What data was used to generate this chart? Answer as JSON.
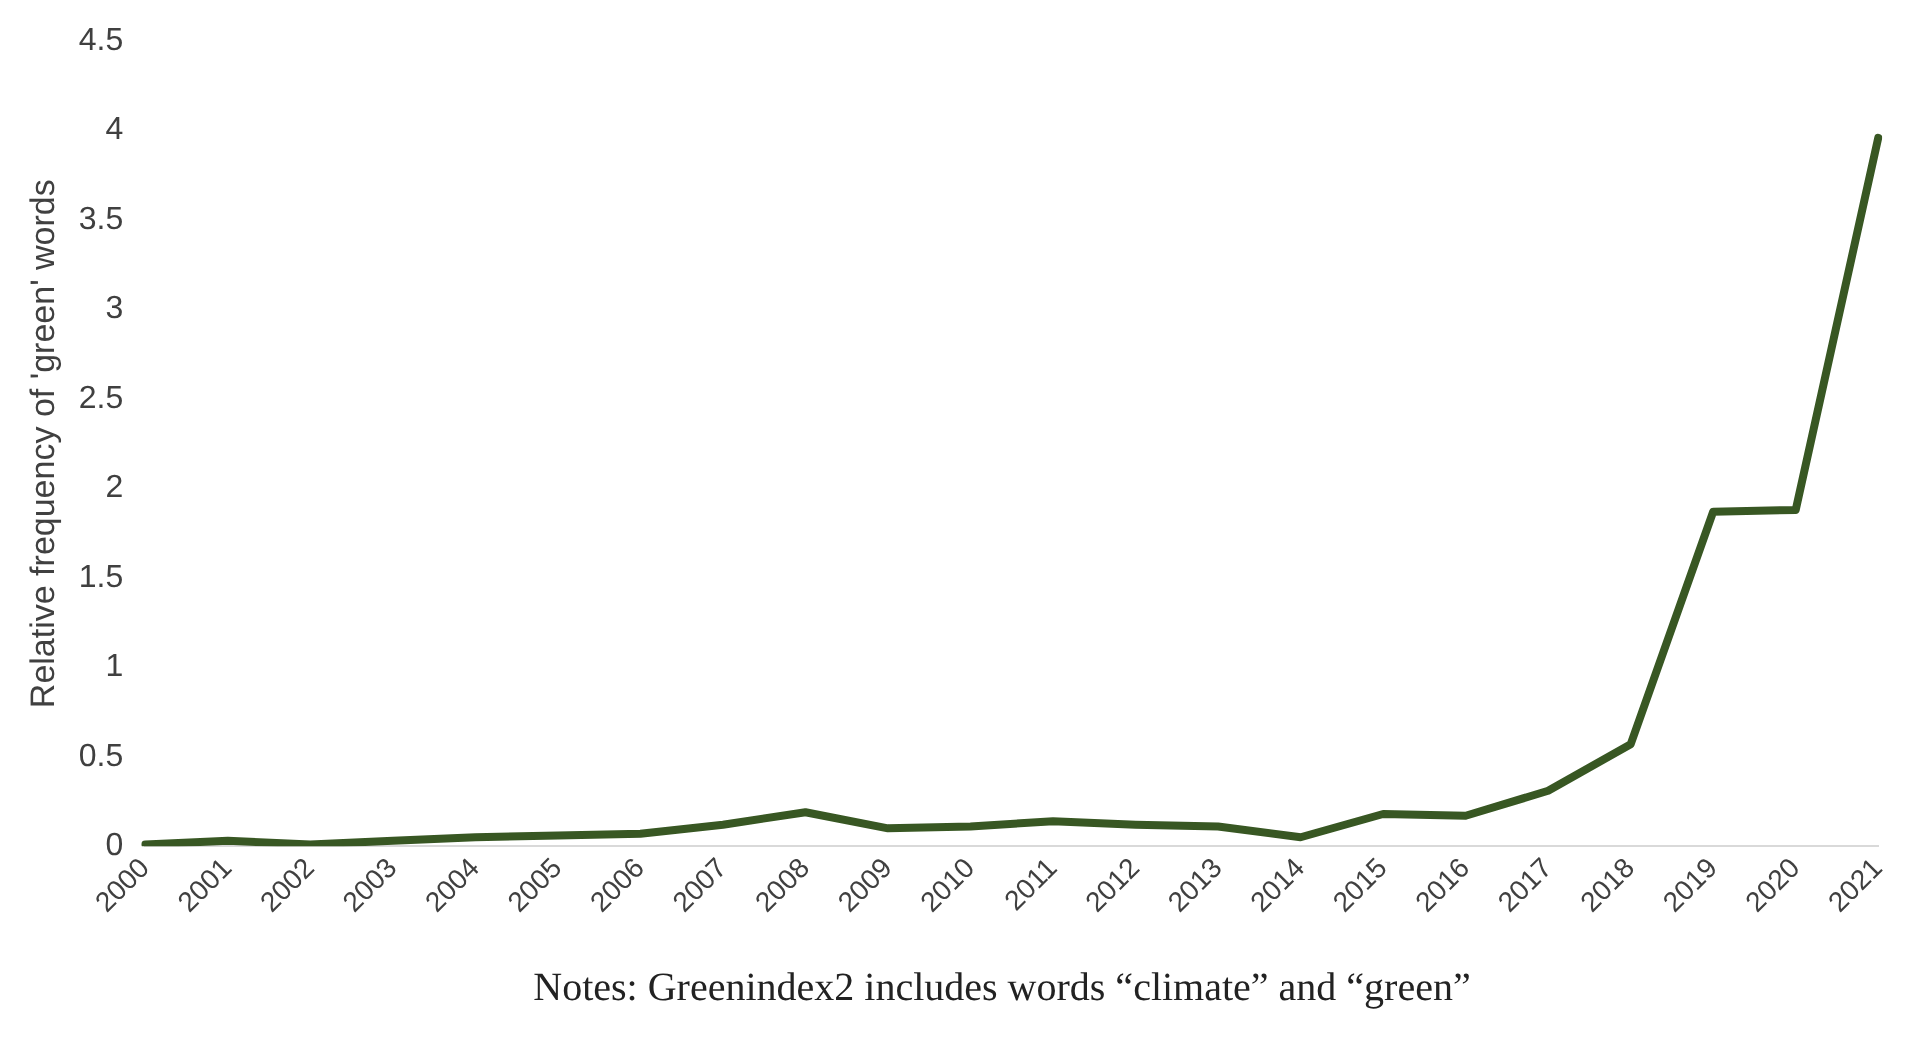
{
  "chart_data": {
    "type": "line",
    "ylabel": "Relative frequency of 'green' words",
    "categories": [
      "2000",
      "2001",
      "2002",
      "2003",
      "2004",
      "2005",
      "2006",
      "2007",
      "2008",
      "2009",
      "2010",
      "2011",
      "2012",
      "2013",
      "2014",
      "2015",
      "2016",
      "2017",
      "2018",
      "2019",
      "2020",
      "2021"
    ],
    "series": [
      {
        "color": "#385723",
        "values": [
          0.01,
          0.03,
          0.01,
          0.03,
          0.05,
          0.06,
          0.07,
          0.12,
          0.19,
          0.1,
          0.11,
          0.14,
          0.12,
          0.11,
          0.05,
          0.18,
          0.17,
          0.31,
          0.57,
          1.87,
          1.88,
          3.96
        ]
      }
    ],
    "ylim": [
      0,
      4.5
    ],
    "yticks": [
      0,
      0.5,
      1,
      1.5,
      2,
      2.5,
      3,
      3.5,
      4,
      4.5
    ],
    "grid": false,
    "legend": false,
    "marker": "none",
    "line_style": "solid",
    "annotations": [
      "Notes: Greenindex2 includes words “climate” and “green”"
    ]
  }
}
